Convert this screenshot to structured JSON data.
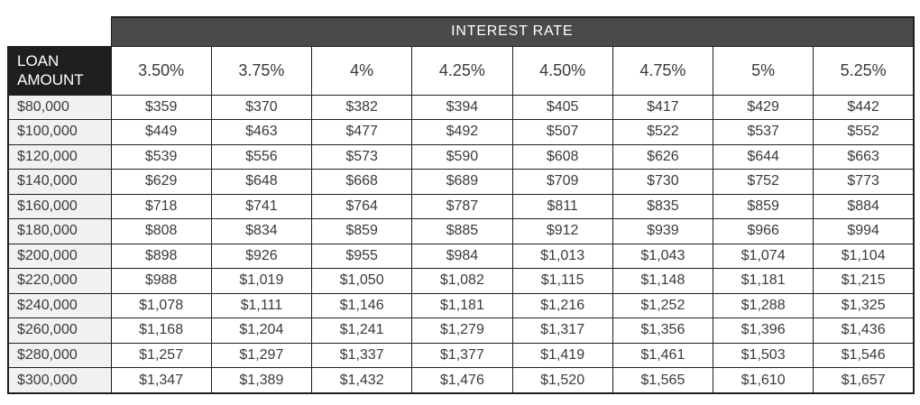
{
  "chart_data": {
    "type": "table",
    "title": "INTEREST RATE",
    "corner_header": "LOAN AMOUNT",
    "columns": [
      "3.50%",
      "3.75%",
      "4%",
      "4.25%",
      "4.50%",
      "4.75%",
      "5%",
      "5.25%"
    ],
    "rows": [
      {
        "loan_amount": "$80,000",
        "payments": [
          "$359",
          "$370",
          "$382",
          "$394",
          "$405",
          "$417",
          "$429",
          "$442"
        ]
      },
      {
        "loan_amount": "$100,000",
        "payments": [
          "$449",
          "$463",
          "$477",
          "$492",
          "$507",
          "$522",
          "$537",
          "$552"
        ]
      },
      {
        "loan_amount": "$120,000",
        "payments": [
          "$539",
          "$556",
          "$573",
          "$590",
          "$608",
          "$626",
          "$644",
          "$663"
        ]
      },
      {
        "loan_amount": "$140,000",
        "payments": [
          "$629",
          "$648",
          "$668",
          "$689",
          "$709",
          "$730",
          "$752",
          "$773"
        ]
      },
      {
        "loan_amount": "$160,000",
        "payments": [
          "$718",
          "$741",
          "$764",
          "$787",
          "$811",
          "$835",
          "$859",
          "$884"
        ]
      },
      {
        "loan_amount": "$180,000",
        "payments": [
          "$808",
          "$834",
          "$859",
          "$885",
          "$912",
          "$939",
          "$966",
          "$994"
        ]
      },
      {
        "loan_amount": "$200,000",
        "payments": [
          "$898",
          "$926",
          "$955",
          "$984",
          "$1,013",
          "$1,043",
          "$1,074",
          "$1,104"
        ]
      },
      {
        "loan_amount": "$220,000",
        "payments": [
          "$988",
          "$1,019",
          "$1,050",
          "$1,082",
          "$1,115",
          "$1,148",
          "$1,181",
          "$1,215"
        ]
      },
      {
        "loan_amount": "$240,000",
        "payments": [
          "$1,078",
          "$1,111",
          "$1,146",
          "$1,181",
          "$1,216",
          "$1,252",
          "$1,288",
          "$1,325"
        ]
      },
      {
        "loan_amount": "$260,000",
        "payments": [
          "$1,168",
          "$1,204",
          "$1,241",
          "$1,279",
          "$1,317",
          "$1,356",
          "$1,396",
          "$1,436"
        ]
      },
      {
        "loan_amount": "$280,000",
        "payments": [
          "$1,257",
          "$1,297",
          "$1,337",
          "$1,377",
          "$1,419",
          "$1,461",
          "$1,503",
          "$1,546"
        ]
      },
      {
        "loan_amount": "$300,000",
        "payments": [
          "$1,347",
          "$1,389",
          "$1,432",
          "$1,476",
          "$1,520",
          "$1,565",
          "$1,610",
          "$1,657"
        ]
      }
    ]
  },
  "colors": {
    "banner_bg": "#4a4a4a",
    "corner_header_bg": "#1f1f1f",
    "loan_column_bg": "#f1f1f1",
    "cell_bg": "#ffffff",
    "border": "#1f1f1f",
    "header_text": "#ffffff",
    "cell_text": "#3a3a3a"
  }
}
